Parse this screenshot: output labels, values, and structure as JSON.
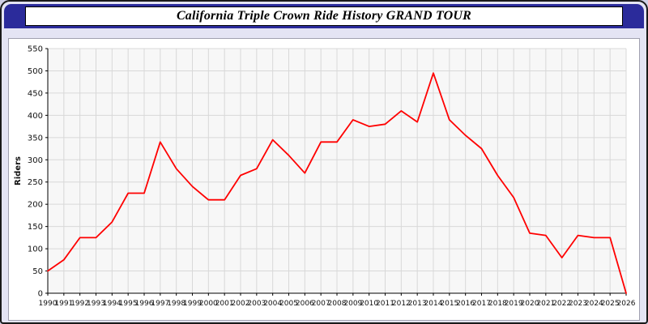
{
  "header": {
    "title": "California Triple Crown Ride History GRAND TOUR"
  },
  "colors": {
    "header_bar": "#2b2b9b",
    "page_background": "#e4e4f4",
    "line": "#ff0000",
    "grid": "#d8d8d8",
    "plot_background": "#f7f7f7",
    "axis": "#000000"
  },
  "chart_data": {
    "type": "line",
    "title": "California Triple Crown Ride History GRAND TOUR",
    "xlabel": "",
    "ylabel": "Riders",
    "ylim": [
      0,
      550
    ],
    "grid": true,
    "legend": "none",
    "line_color": "#ff0000",
    "grid_color": "#d8d8d8",
    "plot_bg": "#f7f7f7",
    "y_ticks": [
      0,
      50,
      100,
      150,
      200,
      250,
      300,
      350,
      400,
      450,
      500,
      550
    ],
    "x_labels": [
      "1990",
      "1991",
      "1992",
      "1993",
      "1994",
      "1995",
      "1996",
      "1997",
      "1998",
      "1999",
      "2000",
      "2001",
      "2002",
      "2003",
      "2004",
      "2005",
      "2006",
      "2007",
      "2008",
      "2009",
      "2010",
      "2011",
      "2012",
      "2013",
      "2014",
      "2015",
      "2016",
      "2017",
      "2018",
      "2019",
      "2020",
      "2021",
      "2022",
      "2023",
      "2024",
      "2025",
      "2026"
    ],
    "values": [
      50,
      75,
      125,
      125,
      160,
      225,
      225,
      340,
      280,
      240,
      210,
      210,
      265,
      280,
      345,
      310,
      270,
      340,
      340,
      390,
      375,
      380,
      410,
      385,
      495,
      390,
      355,
      325,
      265,
      215,
      135,
      130,
      80,
      130,
      125,
      125,
      0
    ]
  }
}
